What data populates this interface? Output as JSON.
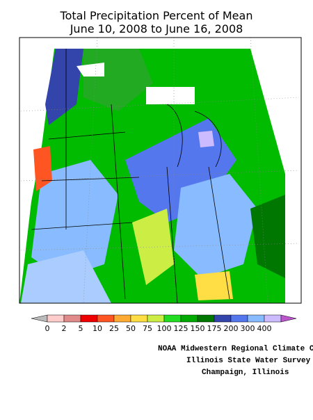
{
  "header": {
    "title": "Total Precipitation Percent of Mean",
    "subtitle": "June 10, 2008 to June 16, 2008"
  },
  "legend": {
    "labels": [
      0,
      2,
      5,
      10,
      25,
      50,
      75,
      100,
      125,
      150,
      175,
      200,
      300,
      400
    ],
    "colors": [
      "#ffcccc",
      "#e08a8a",
      "#ee0000",
      "#ff5522",
      "#ffaa33",
      "#ffdd44",
      "#ccee44",
      "#22dd22",
      "#00aa00",
      "#007700",
      "#3344aa",
      "#5577ee",
      "#88bbff"
    ],
    "under_color": "#bbbbbb",
    "last_color": "#ccbbff",
    "over_color": "#bb55cc"
  },
  "credits": [
    "NOAA Midwestern Regional Climate Cent",
    "Illinois State Water Survey",
    "Champaign, Illinois"
  ]
}
